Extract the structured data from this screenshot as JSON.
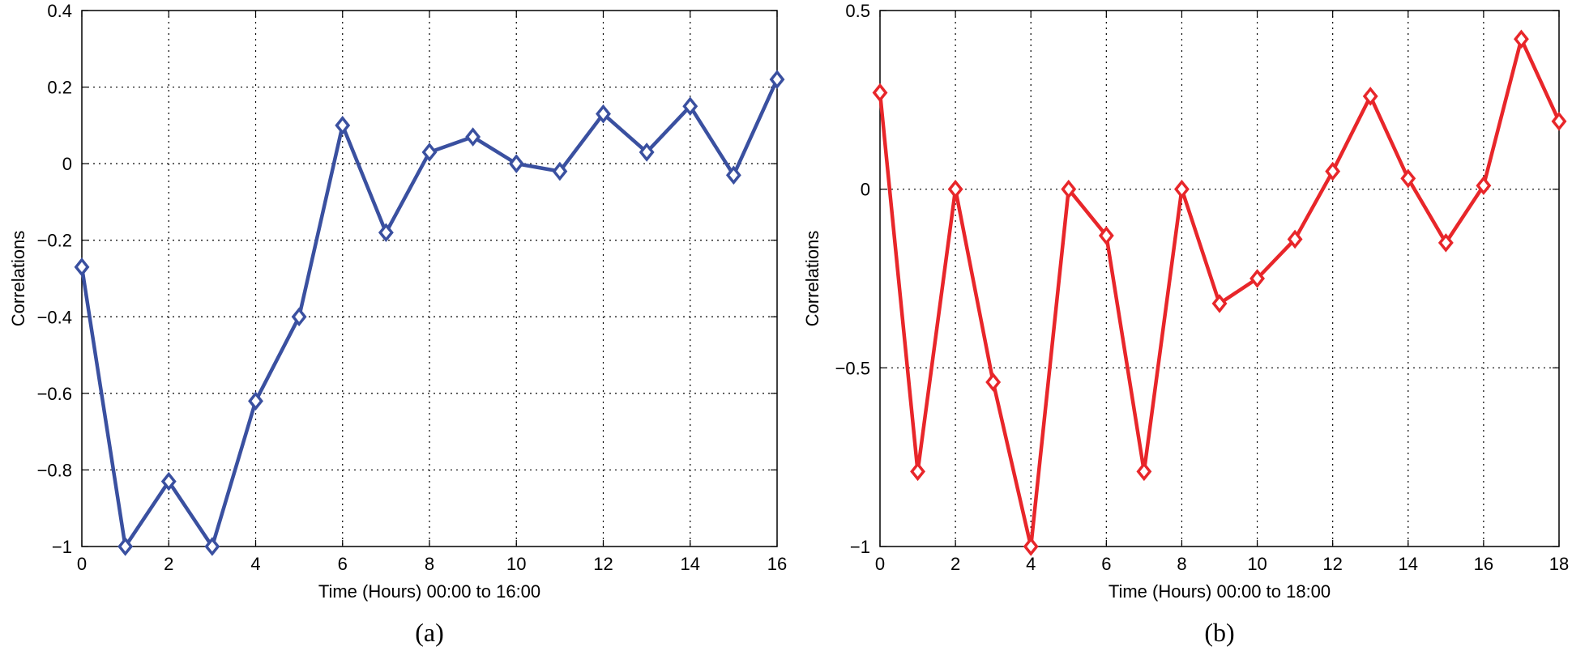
{
  "chart_data": [
    {
      "type": "line",
      "caption": "(a)",
      "xlabel": "Time (Hours) 00:00 to 16:00",
      "ylabel": "Correlations",
      "xlim": [
        0,
        16
      ],
      "ylim": [
        -1,
        0.4
      ],
      "xticks": [
        0,
        2,
        4,
        6,
        8,
        10,
        12,
        14,
        16
      ],
      "xtick_labels": [
        "0",
        "2",
        "4",
        "6",
        "8",
        "10",
        "12",
        "14",
        "16"
      ],
      "yticks": [
        -1,
        -0.8,
        -0.6,
        -0.4,
        -0.2,
        0,
        0.2,
        0.4
      ],
      "ytick_labels": [
        "−1",
        "−0.8",
        "−0.6",
        "−0.4",
        "−0.2",
        "0",
        "0.2",
        "0.4"
      ],
      "grid": true,
      "color": "#3a50a0",
      "marker": "diamond",
      "x": [
        0,
        1,
        2,
        3,
        4,
        5,
        6,
        7,
        8,
        9,
        10,
        11,
        12,
        13,
        14,
        15,
        16
      ],
      "y": [
        -0.27,
        -1.0,
        -0.83,
        -1.0,
        -0.62,
        -0.4,
        0.1,
        -0.18,
        0.03,
        0.07,
        0.0,
        -0.02,
        0.13,
        0.03,
        0.15,
        -0.03,
        0.22
      ]
    },
    {
      "type": "line",
      "caption": "(b)",
      "xlabel": "Time (Hours) 00:00 to 18:00",
      "ylabel": "Correlations",
      "xlim": [
        0,
        18
      ],
      "ylim": [
        -1,
        0.5
      ],
      "xticks": [
        0,
        2,
        4,
        6,
        8,
        10,
        12,
        14,
        16,
        18
      ],
      "xtick_labels": [
        "0",
        "2",
        "4",
        "6",
        "8",
        "10",
        "12",
        "14",
        "16",
        "18"
      ],
      "yticks": [
        -1,
        -0.5,
        0,
        0.5
      ],
      "ytick_labels": [
        "−1",
        "−0.5",
        "0",
        "0.5"
      ],
      "grid": true,
      "color": "#e8262a",
      "marker": "diamond",
      "x": [
        0,
        1,
        2,
        3,
        4,
        5,
        6,
        7,
        8,
        9,
        10,
        11,
        12,
        13,
        14,
        15,
        16,
        17,
        18
      ],
      "y": [
        0.27,
        -0.79,
        0.0,
        -0.54,
        -1.0,
        0.0,
        -0.13,
        -0.79,
        0.0,
        -0.32,
        -0.25,
        -0.14,
        0.05,
        0.26,
        0.03,
        -0.15,
        0.01,
        0.42,
        0.19
      ]
    }
  ]
}
